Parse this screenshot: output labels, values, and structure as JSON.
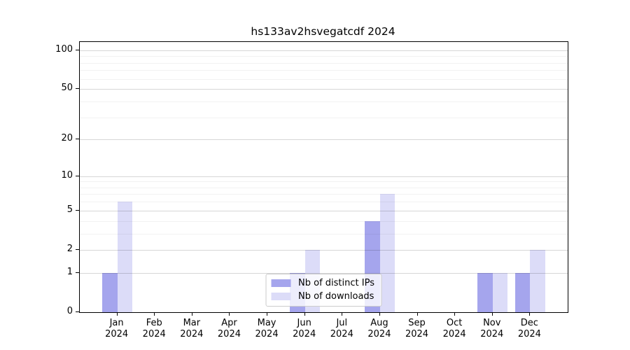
{
  "chart_data": {
    "type": "bar",
    "title": "hs133av2hsvegatcdf 2024",
    "categories": [
      "Jan",
      "Feb",
      "Mar",
      "Apr",
      "May",
      "Jun",
      "Jul",
      "Aug",
      "Sep",
      "Oct",
      "Nov",
      "Dec"
    ],
    "category_sublabel": "2024",
    "series": [
      {
        "name": "Nb of distinct IPs",
        "color": "#a5a5ed",
        "values": [
          1,
          0,
          0,
          0,
          0,
          1,
          0,
          4,
          0,
          0,
          1,
          1
        ]
      },
      {
        "name": "Nb of downloads",
        "color": "#dcdcf8",
        "values": [
          6,
          0,
          0,
          0,
          0,
          2,
          0,
          7,
          0,
          0,
          1,
          2
        ]
      }
    ],
    "yscale": "log10(1+x)",
    "ylim": [
      0,
      116
    ],
    "yticks_major": [
      0,
      1,
      2,
      5,
      10,
      20,
      50,
      100
    ],
    "yticks_minor": [
      3,
      4,
      6,
      7,
      8,
      9,
      30,
      40,
      60,
      70,
      80,
      90
    ],
    "grid": "horizontal-only",
    "legend_position": "lower center"
  },
  "colors": {
    "spine": "#000000",
    "text": "#000000",
    "major_grid": "rgba(0,0,0,0.16)",
    "minor_grid": "rgba(0,0,0,0.05)",
    "legend_border": "#cccccc",
    "legend_background": "rgba(255,255,255,0.8)"
  }
}
